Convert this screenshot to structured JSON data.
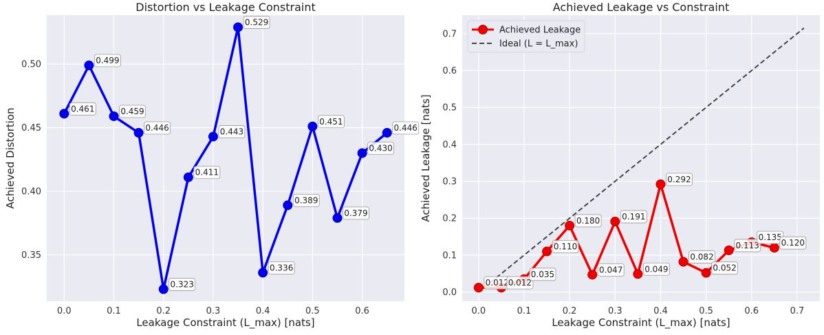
{
  "chart_data": [
    {
      "type": "line",
      "title": "Distortion vs Leakage Constraint",
      "xlabel": "Leakage Constraint (L_max) [nats]",
      "ylabel": "Achieved Distortion",
      "xlim": [
        -0.035,
        0.685
      ],
      "ylim": [
        0.3135,
        0.5385
      ],
      "xticks": [
        0.0,
        0.1,
        0.2,
        0.3,
        0.4,
        0.5,
        0.6
      ],
      "xtick_labels": [
        "0.0",
        "0.1",
        "0.2",
        "0.3",
        "0.4",
        "0.5",
        "0.6"
      ],
      "yticks": [
        0.35,
        0.4,
        0.45,
        0.5
      ],
      "ytick_labels": [
        "0.35",
        "0.40",
        "0.45",
        "0.50"
      ],
      "grid": true,
      "series": [
        {
          "color": "#0000ee",
          "x": [
            0.0,
            0.05,
            0.1,
            0.15,
            0.2,
            0.25,
            0.3,
            0.35,
            0.4,
            0.45,
            0.5,
            0.55,
            0.6,
            0.65
          ],
          "y": [
            0.461,
            0.499,
            0.459,
            0.446,
            0.323,
            0.411,
            0.443,
            0.529,
            0.336,
            0.389,
            0.451,
            0.379,
            0.43,
            0.446
          ],
          "labels": [
            "0.461",
            "0.499",
            "0.459",
            "0.446",
            "0.323",
            "0.411",
            "0.443",
            "0.529",
            "0.336",
            "0.389",
            "0.451",
            "0.379",
            "0.430",
            "0.446"
          ]
        }
      ]
    },
    {
      "type": "line",
      "title": "Achieved Leakage vs Constraint",
      "xlabel": "Leakage Constraint (L_max) [nats]",
      "ylabel": "Achieved Leakage [nats]",
      "xlim": [
        -0.036,
        0.75
      ],
      "ylim": [
        -0.025,
        0.75
      ],
      "xticks": [
        0.0,
        0.1,
        0.2,
        0.3,
        0.4,
        0.5,
        0.6,
        0.7
      ],
      "xtick_labels": [
        "0.0",
        "0.1",
        "0.2",
        "0.3",
        "0.4",
        "0.5",
        "0.6",
        "0.7"
      ],
      "yticks": [
        0.0,
        0.1,
        0.2,
        0.3,
        0.4,
        0.5,
        0.6,
        0.7
      ],
      "ytick_labels": [
        "0.0",
        "0.1",
        "0.2",
        "0.3",
        "0.4",
        "0.5",
        "0.6",
        "0.7"
      ],
      "grid": true,
      "legend_position": "top-left",
      "series": [
        {
          "name": "Achieved Leakage",
          "color": "#ee0000",
          "x": [
            0.0,
            0.05,
            0.1,
            0.15,
            0.2,
            0.25,
            0.3,
            0.35,
            0.4,
            0.45,
            0.5,
            0.55,
            0.6,
            0.65
          ],
          "y": [
            0.012,
            0.012,
            0.035,
            0.11,
            0.18,
            0.047,
            0.191,
            0.049,
            0.292,
            0.082,
            0.052,
            0.113,
            0.135,
            0.12
          ],
          "labels": [
            "0.012",
            "0.012",
            "0.035",
            "0.110",
            "0.180",
            "0.047",
            "0.191",
            "0.049",
            "0.292",
            "0.082",
            "0.052",
            "0.113",
            "0.135",
            "0.120"
          ]
        },
        {
          "name": "Ideal (L = L_max)",
          "color": "#444444",
          "style": "dashed",
          "x": [
            0.0,
            0.715
          ],
          "y": [
            0.0,
            0.715
          ]
        }
      ]
    }
  ]
}
